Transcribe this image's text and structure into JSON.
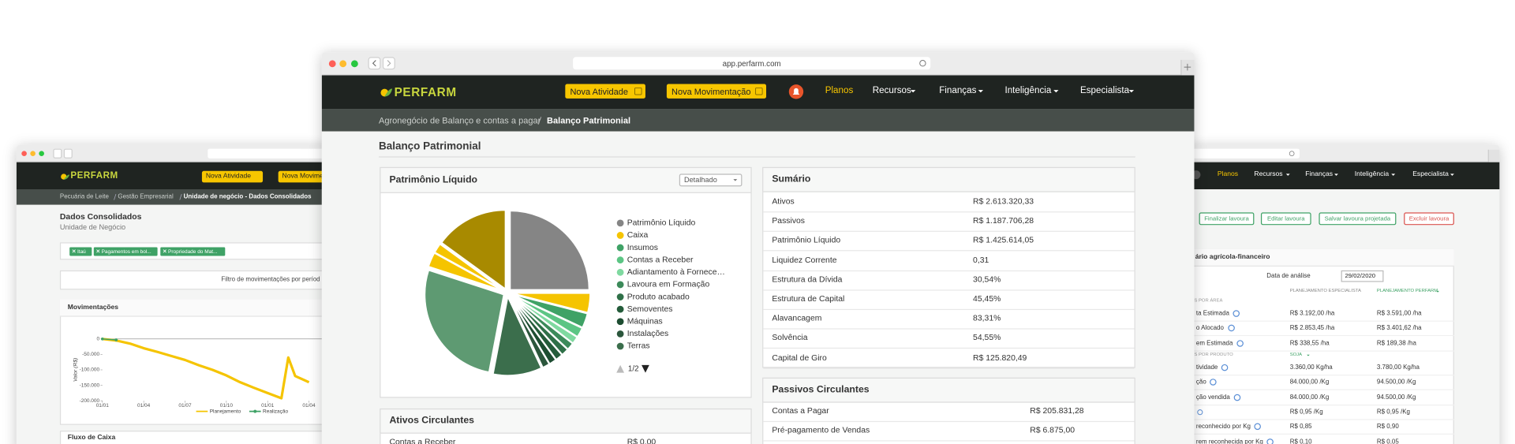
{
  "chart_data": [
    {
      "type": "pie",
      "categories": [
        "Patrimônio Líquido",
        "Caixa",
        "Insumos",
        "Contas a Receber",
        "Adiantamento à Fornece…",
        "Lavoura em Formação",
        "Produto acabado",
        "Semoventes",
        "Máquinas",
        "Instalações",
        "Terras",
        null,
        null,
        null,
        null
      ],
      "values": [
        25,
        4,
        3,
        2,
        1.5,
        1.5,
        1.5,
        1.5,
        1.5,
        1.5,
        10,
        27,
        3,
        2,
        15
      ],
      "colors": [
        "#858585",
        "#f5c400",
        "#3fa266",
        "#5cc584",
        "#7fd9a0",
        "#3c8a5a",
        "#2f7048",
        "#245c3a",
        "#1d4d31",
        "#2b563c",
        "#3b6e4c",
        "#5e9a72",
        "#f5c400",
        "#f5c400",
        "#a88a00"
      ]
    },
    {
      "type": "line",
      "y_label": "Valor (R$)",
      "x": [
        0,
        1,
        2,
        3,
        4,
        5,
        6,
        7,
        8,
        9,
        10,
        11,
        12,
        13,
        13.5,
        14,
        15
      ],
      "series": [
        {
          "name": "Planejamento",
          "color": "#f5c400",
          "values": [
            0,
            -5000,
            -15000,
            -30000,
            -42000,
            -55000,
            -68000,
            -85000,
            -100000,
            -118000,
            -140000,
            -158000,
            -175000,
            -192000,
            -60000,
            -120000,
            -140000
          ]
        },
        {
          "name": "Realização",
          "color": "#3fa266",
          "values": [
            0,
            -3000,
            null,
            null,
            null,
            null,
            null,
            null,
            null,
            null,
            null,
            null,
            null,
            null,
            null,
            null,
            null
          ]
        }
      ],
      "xlim": [
        0,
        16
      ],
      "xticks": [
        {
          "value": 0,
          "label": "01/01"
        },
        {
          "value": 3,
          "label": "01/04"
        },
        {
          "value": 6,
          "label": "01/07"
        },
        {
          "value": 9,
          "label": "01/10"
        },
        {
          "value": 12,
          "label": "01/01"
        },
        {
          "value": 15,
          "label": "01/04"
        }
      ],
      "ylim": [
        -200000,
        0
      ],
      "yticks": [
        0,
        {
          "value": -50000,
          "label": "-50.000"
        },
        {
          "value": -100000,
          "label": "-100.000"
        },
        {
          "value": -150000,
          "label": "-150.000"
        },
        {
          "value": -200000,
          "label": "-200.000"
        }
      ],
      "grid": false
    }
  ],
  "main_window": {
    "url": "app.perfarm.com",
    "brand": "PERFARM",
    "buttons": [
      "Nova Atividade",
      "Nova Movimentação"
    ],
    "menu": [
      "Planos",
      "Recursos",
      "Finanças",
      "Inteligência",
      "Especialista"
    ],
    "breadcrumb": [
      "Agronegócio de Balanço e contas a pagar",
      "Balanço Patrimonial"
    ],
    "title": "Balanço Patrimonial",
    "equity_card": {
      "title": "Patrimônio Líquido",
      "select": "Detalhado",
      "pager": "1/2"
    },
    "summary": {
      "title": "Sumário",
      "rows": [
        {
          "label": "Ativos",
          "value": "R$ 2.613.320,33"
        },
        {
          "label": "Passivos",
          "value": "R$ 1.187.706,28"
        },
        {
          "label": "Patrimônio Líquido",
          "value": "R$ 1.425.614,05"
        },
        {
          "label": "Liquidez Corrente",
          "value": "0,31"
        },
        {
          "label": "Estrutura da Dívida",
          "value": "30,54%"
        },
        {
          "label": "Estrutura de Capital",
          "value": "45,45%"
        },
        {
          "label": "Alavancagem",
          "value": "83,31%"
        },
        {
          "label": "Solvência",
          "value": "54,55%"
        },
        {
          "label": "Capital de Giro",
          "value": "R$ 125.820,49"
        }
      ]
    },
    "current_liabilities": {
      "title": "Passivos Circulantes",
      "rows": [
        {
          "label": "Contas a Pagar",
          "value": "R$ 205.831,28"
        },
        {
          "label": "Pré-pagamento de Vendas",
          "value": "R$ 6.875,00"
        }
      ]
    },
    "current_assets": {
      "title": "Ativos Circulantes",
      "rows": [
        {
          "label": "Contas a Receber",
          "value": "R$ 0,00"
        }
      ]
    }
  },
  "left_window": {
    "brand": "PERFARM",
    "buttons": [
      "Nova Atividade",
      "Nova Movime"
    ],
    "breadcrumb": [
      "Pecuária de Leite",
      "Gestão Empresarial",
      "Unidade de negócio - Dados Consolidados"
    ],
    "title": "Dados Consolidados",
    "subtitle": "Unidade de Negócio",
    "tags": [
      "Itaú",
      "Pagamentos em bol...",
      "Propriedade do Mat..."
    ],
    "filter": "Filtro de movimentações por períod",
    "card_title": "Movimentações",
    "next_card_title": "Fluxo de Caixa"
  },
  "right_window": {
    "menu": [
      "Planos",
      "Recursos",
      "Finanças",
      "Inteligência",
      "Especialista"
    ],
    "buttons": [
      "Finalizar lavoura",
      "Editar lavoura",
      "Salvar lavoura projetada",
      "Excluir lavoura"
    ],
    "card_title": "ário agrícola-financeiro",
    "date_label": "Data de análise",
    "date_value": "29/02/2020",
    "columns": [
      "PLANEJAMENTO ESPECIALISTA",
      "PLANEJAMENTO PERFARM"
    ],
    "section_area": "S POR ÁREA",
    "section_product": "S POR PRODUTO",
    "product": "SOJA",
    "area_rows": [
      {
        "label": "ta Estimada",
        "specialist": "R$ 3.192,00 /ha",
        "perfarm": "R$ 3.591,00 /ha"
      },
      {
        "label": "o Alocado",
        "specialist": "R$ 2.853,45 /ha",
        "perfarm": "R$ 3.401,62 /ha"
      },
      {
        "label": "em Estimada",
        "specialist": "R$ 338,55 /ha",
        "perfarm": "R$ 189,38 /ha"
      }
    ],
    "product_rows": [
      {
        "label": "tividade",
        "specialist": "3.360,00 Kg/ha",
        "perfarm": "3.780,00 Kg/ha"
      },
      {
        "label": "ção",
        "specialist": "84.000,00 /Kg",
        "perfarm": "94.500,00 /Kg"
      },
      {
        "label": "ção vendida",
        "specialist": "84.000,00 /Kg",
        "perfarm": "94.500,00 /Kg"
      },
      {
        "specialist": "R$ 0,95 /Kg",
        "perfarm": "R$ 0,95 /Kg"
      },
      {
        "label": "reconhecido por Kg",
        "specialist": "R$ 0,85",
        "perfarm": "R$ 0,90"
      },
      {
        "label": "rem reconhecida por Kg",
        "specialist": "R$ 0,10",
        "perfarm": "R$ 0,05"
      }
    ]
  }
}
